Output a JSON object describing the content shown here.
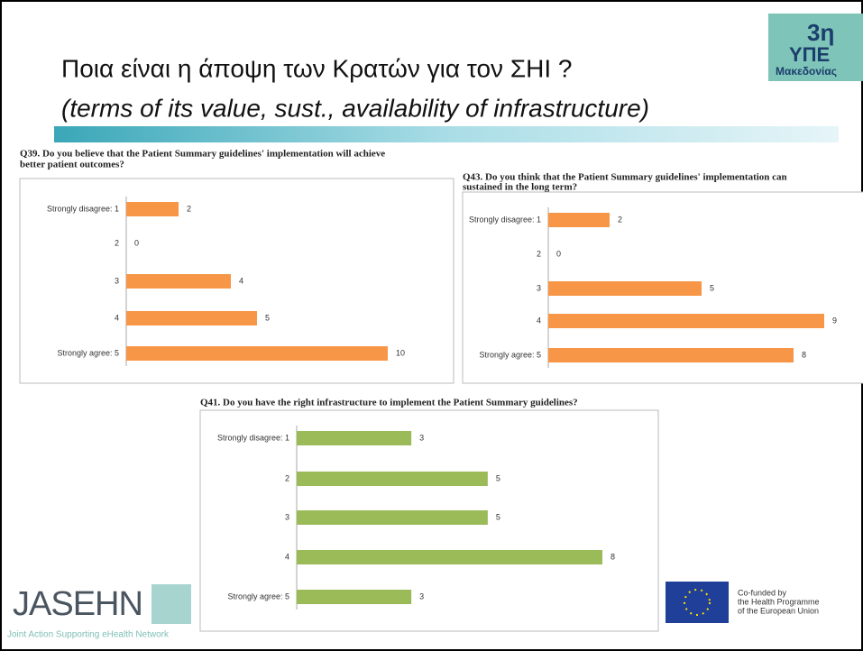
{
  "slide": {
    "title": "Ποια είναι η άποψη των Κρατών για τον ΣΗΙ ?",
    "subtitle": "(terms of its value, sust., availability of infrastructure)",
    "logo_top": {
      "number": "3η",
      "name": "ΥΠΕ",
      "region": "Μακεδονίας"
    },
    "logo_left": {
      "name": "JASEHN",
      "tagline": "Joint Action Supporting eHealth Network"
    },
    "logo_right": [
      "Co-funded by",
      "the Health Programme",
      "of the European Union"
    ]
  },
  "chart_data": [
    {
      "type": "bar",
      "orientation": "horizontal",
      "title": [
        "Q39. Do you believe that the Patient Summary guidelines' implementation will achieve",
        "better patient outcomes?"
      ],
      "categories": [
        "Strongly disagree: 1",
        "2",
        "3",
        "4",
        "Strongly agree: 5"
      ],
      "values": [
        2,
        0,
        4,
        5,
        10
      ],
      "color": "#f79646"
    },
    {
      "type": "bar",
      "orientation": "horizontal",
      "title": [
        "Q43. Do you think that the Patient Summary guidelines' implementation can",
        "sustained in the long term?"
      ],
      "categories": [
        "Strongly disagree: 1",
        "2",
        "3",
        "4",
        "Strongly agree: 5"
      ],
      "values": [
        2,
        0,
        5,
        9,
        8
      ],
      "color": "#f79646"
    },
    {
      "type": "bar",
      "orientation": "horizontal",
      "title": [
        "Q41. Do you have the right infrastructure to implement the Patient Summary guidelines?"
      ],
      "categories": [
        "Strongly disagree: 1",
        "2",
        "3",
        "4",
        "Strongly agree: 5"
      ],
      "values": [
        3,
        5,
        5,
        8,
        3
      ],
      "color": "#9bbb59"
    }
  ]
}
